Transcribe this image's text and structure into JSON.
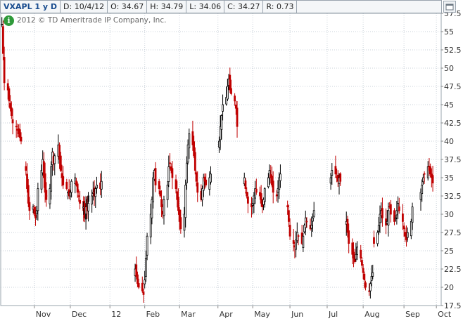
{
  "header": {
    "symbol_label": "VXAPL 1 y D",
    "date_label": "D: 10/4/12",
    "open_label": "O: 34.67",
    "high_label": "H: 34.79",
    "low_label": "L: 34.06",
    "close_label": "C: 34.27",
    "range_label": "R: 0.73"
  },
  "copyright": "2012 © TD Ameritrade IP Company, Inc.",
  "info_icon": "info-icon",
  "colors": {
    "up": "#000000",
    "down": "#c00000",
    "grid": "#c8d0d8",
    "axis": "#888888"
  },
  "chart_data": {
    "type": "candlestick",
    "title": "",
    "xlabel": "",
    "ylabel": "",
    "ylim": [
      17.5,
      57.5
    ],
    "y_ticks": [
      57.5,
      55,
      52.5,
      50,
      47.5,
      45,
      42.5,
      40,
      37.5,
      35,
      32.5,
      30,
      27.5,
      25,
      22.5,
      20,
      17.5
    ],
    "y_tick_labels": [
      "57.5",
      "55",
      "52.5",
      "50",
      "47.5",
      "45",
      "42.5",
      "40",
      "37.5",
      "35",
      "32.5",
      "30",
      "27.5",
      "25",
      "22.5",
      "20",
      "17.5"
    ],
    "x_ticks": [
      "Nov",
      "Dec",
      "12",
      "Feb",
      "Mar",
      "Apr",
      "May",
      "Jun",
      "Jul",
      "Aug",
      "Sep",
      "Oct"
    ],
    "x_tick_dates": [
      "2011-11-01",
      "2011-12-01",
      "2012-01-03",
      "2012-02-01",
      "2012-03-01",
      "2012-04-02",
      "2012-05-01",
      "2012-06-01",
      "2012-07-02",
      "2012-08-01",
      "2012-09-04",
      "2012-10-01"
    ],
    "grid": true,
    "segments": [
      {
        "start": "2011-10-05",
        "closes": [
          56.0,
          52.0,
          48.0,
          47.0,
          45.5,
          44.5,
          43.5,
          42.5,
          42.0,
          41.5,
          41.0,
          40.5,
          40.0
        ]
      },
      {
        "start": "2011-10-25",
        "closes": [
          36.0,
          33.5,
          31.5,
          30.5,
          31.0,
          30.0,
          29.5,
          30.5,
          33.5,
          36.0,
          37.5,
          35.0,
          33.0,
          32.0,
          33.5,
          36.5,
          38.5,
          37.0,
          38.0,
          39.5,
          37.5,
          36.0,
          35.0,
          34.0,
          33.5,
          33.0,
          32.5,
          33.0,
          34.5,
          35.0,
          34.0,
          33.0,
          32.5,
          31.5,
          30.5,
          29.5,
          31.0,
          32.0,
          32.5
        ]
      },
      {
        "start": "2011-12-12",
        "closes": [
          31.0,
          30.5,
          31.0,
          30.5,
          31.5,
          32.5,
          33.0,
          32.5,
          33.5,
          34.0,
          33.5,
          34.5
        ]
      },
      {
        "start": "2012-01-24",
        "closes": [
          22.5,
          21.5,
          20.5,
          20.0,
          19.5,
          19.0
        ]
      },
      {
        "start": "2012-02-01",
        "closes": [
          21.0,
          24.0,
          27.0,
          30.0,
          32.0,
          35.0,
          36.0,
          34.0,
          33.5,
          32.5,
          31.0,
          30.0,
          32.0,
          34.0,
          36.5,
          37.0,
          36.0,
          35.0,
          33.5,
          32.0,
          30.5,
          29.0,
          28.0,
          30.0,
          34.0,
          37.0,
          39.5,
          41.0,
          39.5,
          38.0,
          36.0,
          34.5,
          33.0,
          32.0,
          33.5,
          35.0,
          34.5,
          34.0,
          35.0,
          35.5
        ]
      },
      {
        "start": "2012-04-03",
        "closes": [
          40.0,
          42.0,
          43.5,
          45.0,
          46.0,
          47.5,
          48.5,
          47.0,
          46.5,
          45.5,
          44.5,
          42.0
        ]
      },
      {
        "start": "2012-04-24",
        "closes": [
          35.0,
          33.5,
          32.5,
          31.5,
          31.0,
          31.5,
          32.5,
          33.5,
          33.0,
          32.5,
          31.5,
          31.0,
          32.0,
          33.5,
          35.0,
          36.0,
          35.0,
          34.0,
          33.0,
          32.5,
          33.5,
          35.0,
          35.5
        ]
      },
      {
        "start": "2012-05-30",
        "closes": [
          31.0,
          29.0,
          27.0,
          26.0,
          25.5,
          26.5,
          27.5,
          27.0,
          26.0,
          27.0,
          28.5,
          29.5,
          29.0,
          28.0,
          28.5,
          29.5,
          30.5
        ]
      },
      {
        "start": "2012-07-05",
        "closes": [
          35.0,
          36.0,
          35.5,
          35.0,
          34.5,
          35.0,
          34.5
        ]
      },
      {
        "start": "2012-07-18",
        "closes": [
          29.0,
          27.5,
          26.0,
          24.5,
          24.0,
          23.5,
          24.5,
          25.5,
          24.0,
          23.0,
          22.0,
          21.0,
          20.0,
          19.5,
          20.5,
          21.5,
          22.0
        ]
      },
      {
        "start": "2012-08-10",
        "closes": [
          26.0,
          27.5,
          28.5,
          30.0,
          30.5,
          29.5,
          28.5,
          29.0,
          30.5,
          31.0,
          30.0,
          29.0,
          29.5,
          30.5,
          31.5,
          30.5,
          29.0,
          28.0,
          27.0,
          26.5,
          27.5,
          29.0,
          31.0
        ]
      },
      {
        "start": "2012-09-18",
        "closes": [
          33.0,
          34.0,
          35.0,
          35.5,
          36.5,
          36.0,
          35.5,
          35.0,
          34.27
        ]
      }
    ]
  }
}
